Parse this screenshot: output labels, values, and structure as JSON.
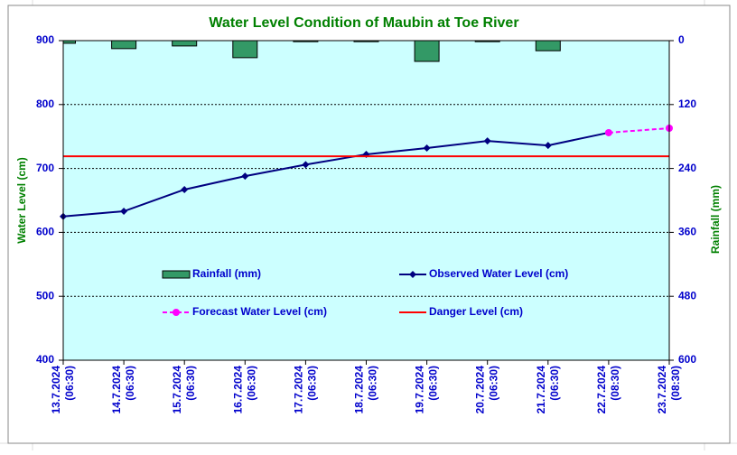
{
  "chart_data": {
    "type": "combo",
    "title": "Water Level Condition of  Maubin at Toe River",
    "y_label": "Water Level (cm)",
    "y2_label": "Rainfall (mm)",
    "categories": [
      "13.7.2024 (06:30)",
      "14.7.2024 (06:30)",
      "15.7.2024 (06:30)",
      "16.7.2024 (06:30)",
      "17.7.2024 (06:30)",
      "18.7.2024 (06:30)",
      "19.7.2024 (06:30)",
      "20.7.2024 (06:30)",
      "21.7.2024 (06:30)",
      "22.7.2024 (08:30)",
      "23.7.2024 (08:30)"
    ],
    "series": [
      {
        "name": "Rainfall (mm)",
        "kind": "bar",
        "axis": "y2",
        "color": "#339966",
        "values": [
          5,
          15,
          10,
          32,
          2,
          2,
          39,
          2,
          19,
          null,
          null
        ]
      },
      {
        "name": "Observed Water Level (cm)",
        "kind": "line",
        "color": "#000080",
        "marker": "diamond",
        "values": [
          625,
          633,
          667,
          688,
          706,
          722,
          732,
          743,
          736,
          756,
          null
        ]
      },
      {
        "name": "Forecast Water Level (cm)",
        "kind": "line",
        "color": "#ff00ff",
        "marker": "circle",
        "dashed": true,
        "values": [
          null,
          null,
          null,
          null,
          null,
          null,
          null,
          null,
          null,
          756,
          763
        ]
      }
    ],
    "danger_level": {
      "name": "Danger Level (cm)",
      "color": "#ff0000",
      "value": 719
    },
    "ylim": [
      400,
      900
    ],
    "yticks": [
      400,
      500,
      600,
      700,
      800,
      900
    ],
    "y2lim": [
      0,
      600
    ],
    "y2_inverted": true,
    "y2ticks": [
      0,
      120,
      240,
      360,
      480,
      600
    ],
    "grid": true,
    "plot_background": "#ccffff"
  }
}
